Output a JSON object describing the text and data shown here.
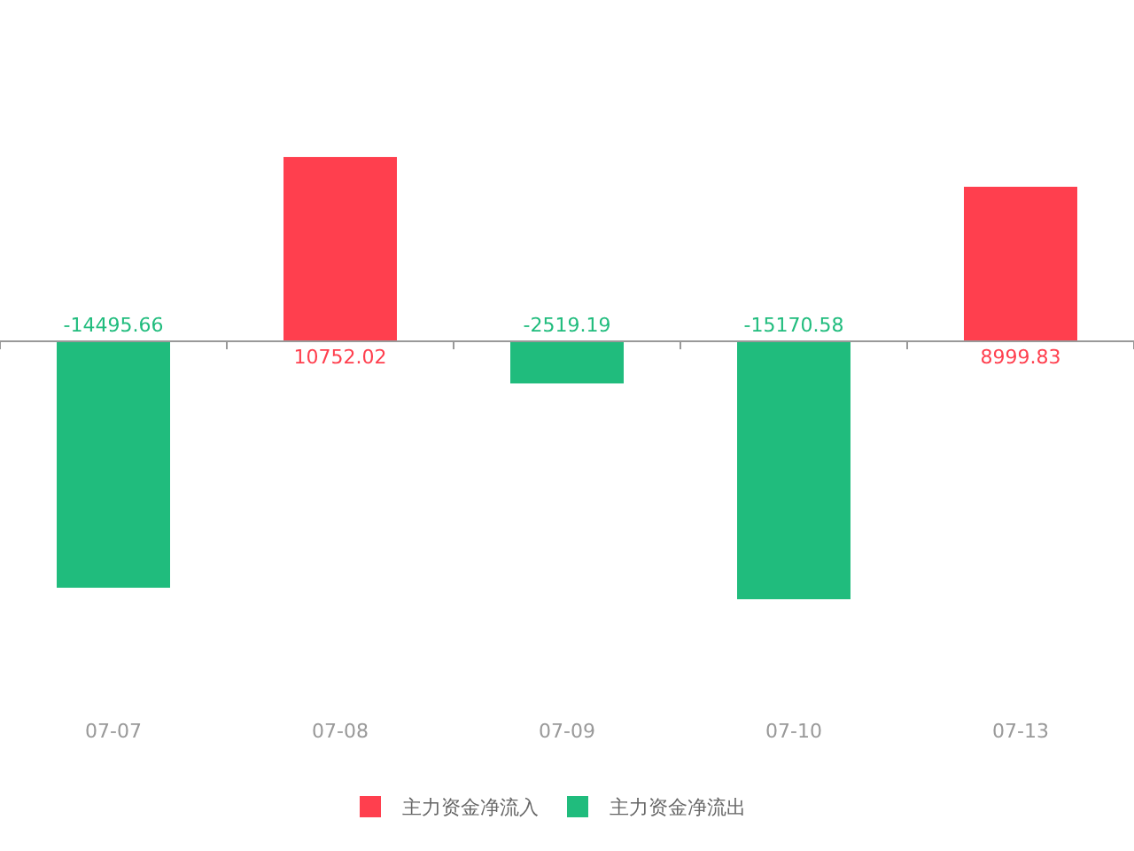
{
  "chart_data": {
    "type": "bar",
    "categories": [
      "07-07",
      "07-08",
      "07-09",
      "07-10",
      "07-13"
    ],
    "series": [
      {
        "name": "主力资金净流入",
        "color": "#ff3f4e",
        "values": [
          null,
          10752.02,
          null,
          null,
          8999.83
        ]
      },
      {
        "name": "主力资金净流出",
        "color": "#20bc7d",
        "values": [
          -14495.66,
          null,
          -2519.19,
          -15170.58,
          null
        ]
      }
    ],
    "data_labels": true,
    "legend": "bottom",
    "grid": false
  }
}
